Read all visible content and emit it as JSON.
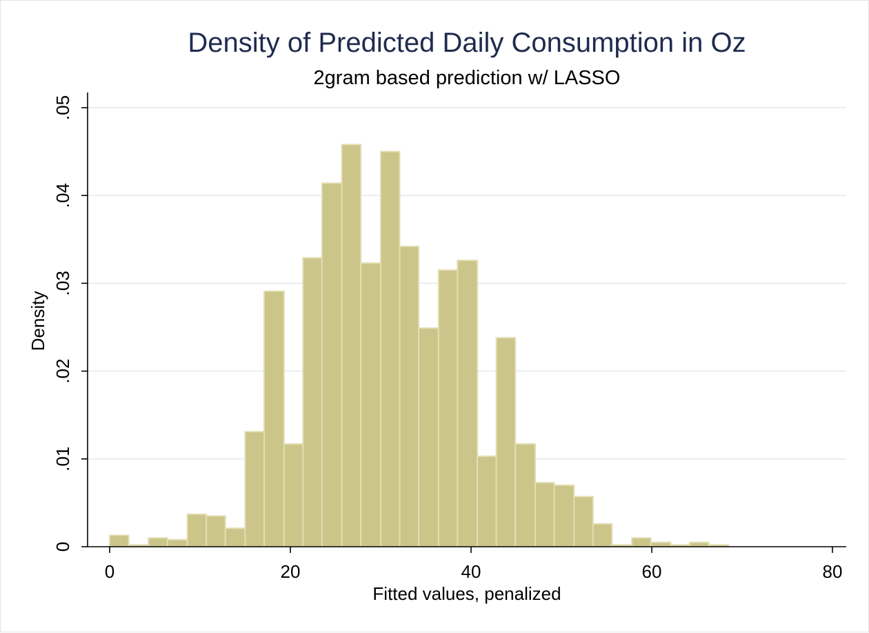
{
  "chart_data": {
    "type": "bar",
    "title": "Density of Predicted Daily Consumption in Oz",
    "subtitle": "2gram based prediction w/ LASSO",
    "xlabel": "Fitted values, penalized",
    "ylabel": "Density",
    "xlim": [
      0,
      80
    ],
    "ylim": [
      0,
      0.05
    ],
    "xticks": [
      0,
      20,
      40,
      60,
      80
    ],
    "xtick_labels": [
      "0",
      "20",
      "40",
      "60",
      "80"
    ],
    "yticks": [
      0,
      0.01,
      0.02,
      0.03,
      0.04,
      0.05
    ],
    "ytick_labels": [
      "0",
      ".01",
      ".02",
      ".03",
      ".04",
      ".05"
    ],
    "grid": true,
    "bar_color": "#cbc58a",
    "bar_edge_color": "#e3ddb2",
    "bin_edges": [
      0.0,
      2.1,
      4.3,
      6.4,
      8.6,
      10.7,
      12.8,
      15.0,
      17.1,
      19.3,
      21.4,
      23.5,
      25.7,
      27.8,
      30.0,
      32.1,
      34.2,
      36.4,
      38.5,
      40.7,
      42.8,
      44.9,
      47.1,
      49.2,
      51.4,
      53.5,
      55.6,
      57.8,
      59.9,
      62.1,
      64.2,
      66.3,
      68.5
    ],
    "values": [
      0.0013,
      0.0002,
      0.001,
      0.0008,
      0.0037,
      0.0035,
      0.0021,
      0.0131,
      0.0291,
      0.0117,
      0.0329,
      0.0414,
      0.0458,
      0.0323,
      0.045,
      0.0342,
      0.0249,
      0.0315,
      0.0326,
      0.0103,
      0.0238,
      0.0117,
      0.0073,
      0.007,
      0.0057,
      0.0026,
      0.0002,
      0.001,
      0.0005,
      0.0002,
      0.0005,
      0.0002
    ]
  }
}
